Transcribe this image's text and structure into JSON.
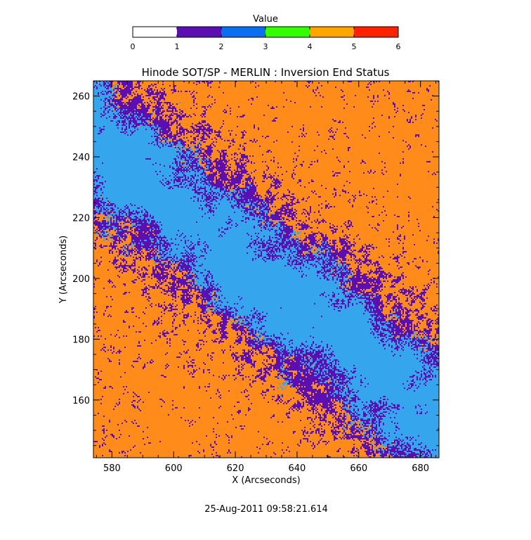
{
  "chart_data": {
    "type": "heatmap",
    "title": "Hinode SOT/SP - MERLIN : Inversion End Status",
    "xlabel": "X (Arcseconds)",
    "ylabel": "Y (Arcseconds)",
    "xlim": [
      574,
      686
    ],
    "ylim": [
      141,
      265
    ],
    "x_ticks": [
      580,
      600,
      620,
      640,
      660,
      680
    ],
    "y_ticks": [
      160,
      180,
      200,
      220,
      240,
      260
    ],
    "colorbar": {
      "title": "Value",
      "range": [
        0,
        6
      ],
      "ticks": [
        0,
        1,
        2,
        3,
        4,
        5,
        6
      ],
      "bins": [
        {
          "from": 0,
          "to": 1,
          "color": "#ffffff"
        },
        {
          "from": 1,
          "to": 2,
          "color": "#5b0fb3"
        },
        {
          "from": 2,
          "to": 3,
          "color": "#0a6ef2"
        },
        {
          "from": 3,
          "to": 4,
          "color": "#33ff00"
        },
        {
          "from": 4,
          "to": 5,
          "color": "#ffa500"
        },
        {
          "from": 5,
          "to": 6,
          "color": "#ff2200"
        }
      ]
    },
    "map_colors": {
      "value_1": "#5b0fb3",
      "value_2": "#35a6ee",
      "value_4": "#ff8c1a"
    },
    "timestamp": "25-Aug-2011 09:58:21.614"
  }
}
